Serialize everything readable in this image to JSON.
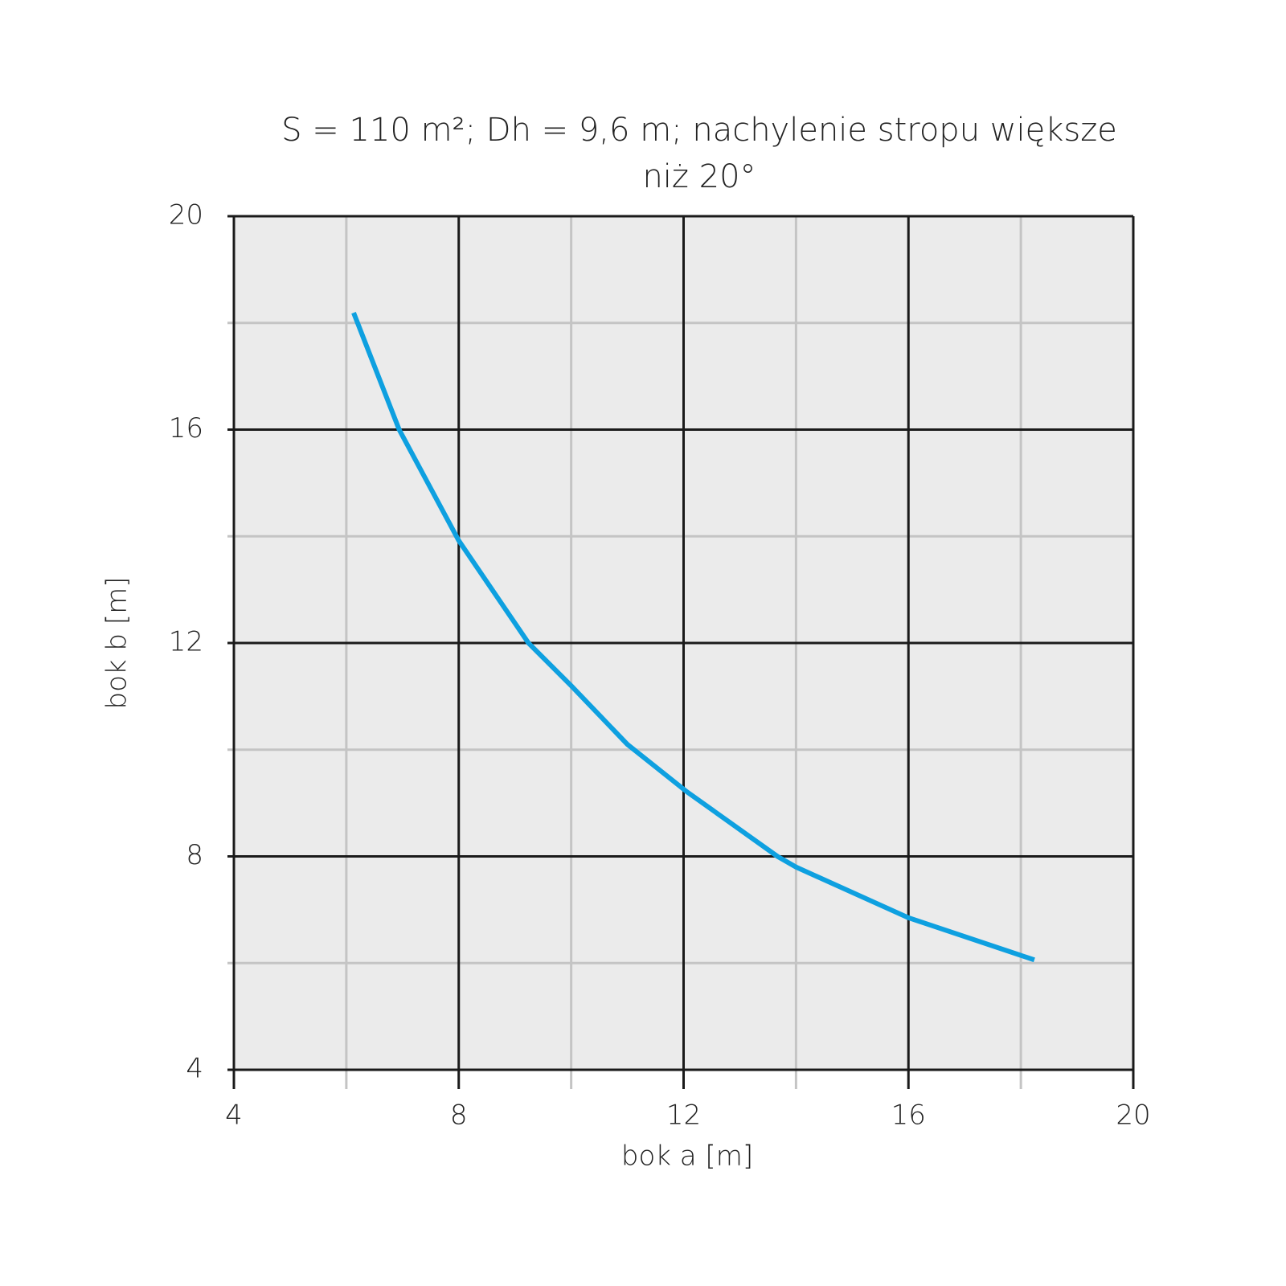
{
  "chart_data": {
    "type": "line",
    "title": [
      "S = 110 m²; Dh = 9,6 m; nachylenie stropu większe",
      "niż 20°"
    ],
    "x_label": "bok a [m]",
    "y_label": "bok b [m]",
    "x": [
      6.13,
      6.94,
      8.0,
      9.24,
      10.0,
      11.0,
      12.06,
      13.67,
      14.0,
      16.0,
      18.24
    ],
    "series": [
      {
        "color": "#0ea0e0",
        "values": [
          18.19,
          16.0,
          13.92,
          12.0,
          11.2,
          10.1,
          9.21,
          8.0,
          7.8,
          6.85,
          6.06
        ]
      }
    ],
    "xlim": [
      4,
      20
    ],
    "ylim": [
      4,
      20
    ],
    "xticks": [
      4,
      8,
      12,
      16,
      20
    ],
    "yticks": [
      4,
      8,
      12,
      16,
      20
    ],
    "xticks_minor": [
      6,
      10,
      14,
      18
    ],
    "yticks_minor": [
      6,
      10,
      14,
      18
    ],
    "grid": true
  }
}
